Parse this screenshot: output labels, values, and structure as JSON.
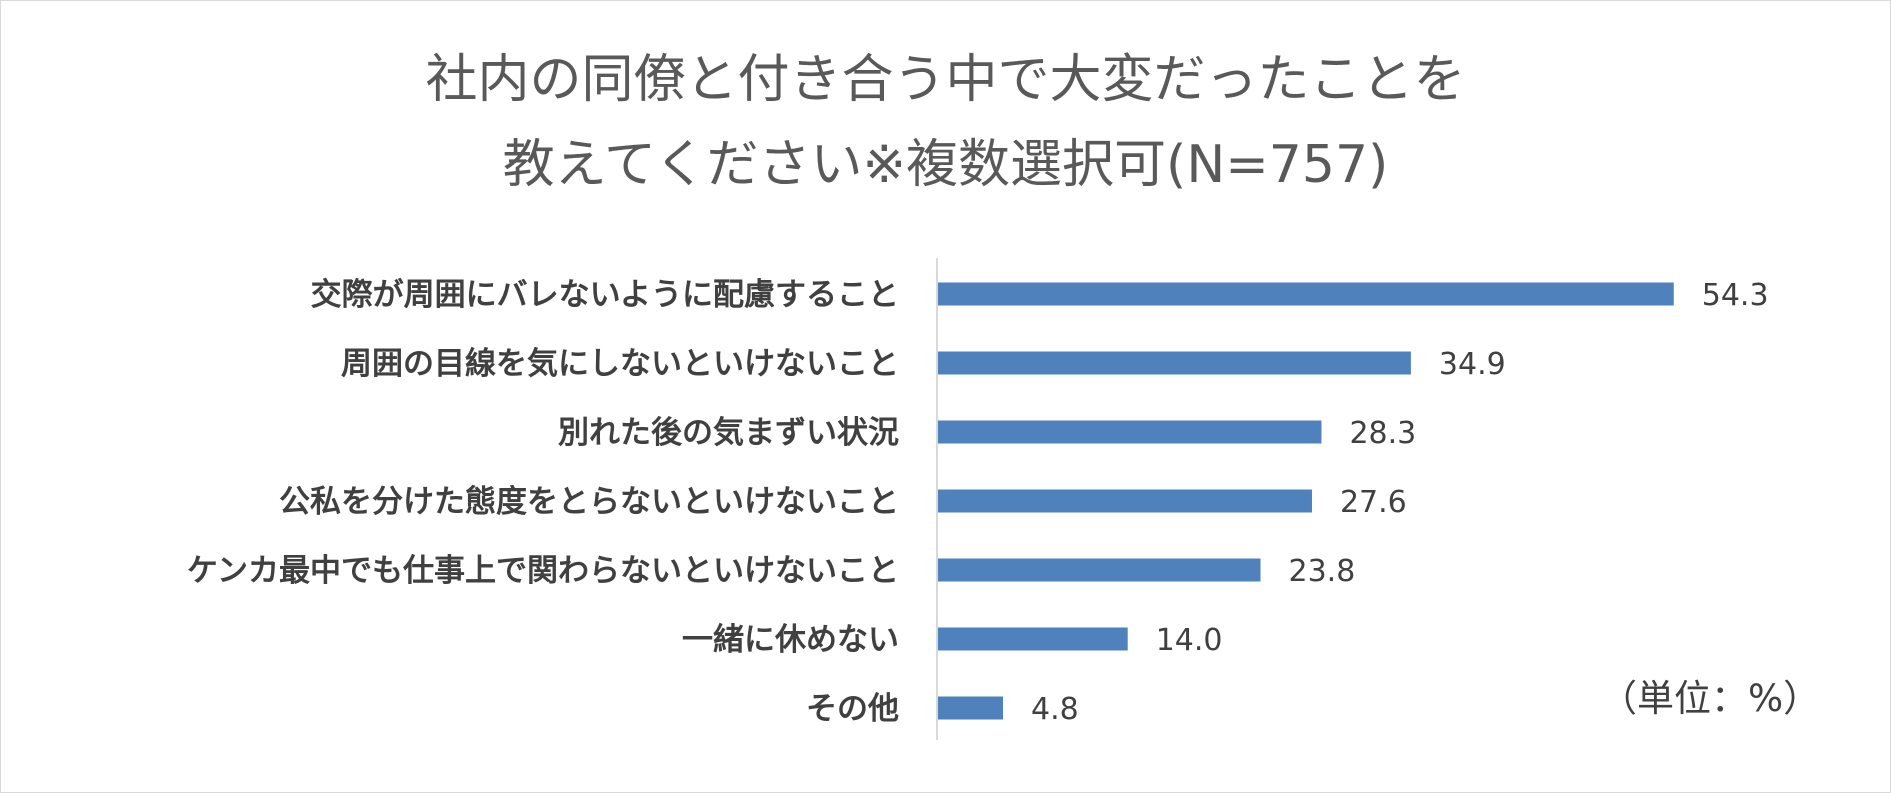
{
  "chart_data": {
    "type": "bar",
    "orientation": "horizontal",
    "title": [
      "社内の同僚と付き合う中で大変だったことを",
      "教えてください※複数選択可(N=757)"
    ],
    "categories": [
      "交際が周囲にバレないように配慮すること",
      "周囲の目線を気にしないといけないこと",
      "別れた後の気まずい状況",
      "公私を分けた態度をとらないといけないこと",
      "ケンカ最中でも仕事上で関わらないといけないこと",
      "一緒に休めない",
      "その他"
    ],
    "values": [
      54.3,
      34.9,
      28.3,
      27.6,
      23.8,
      14.0,
      4.8
    ],
    "value_labels": [
      "54.3",
      "34.9",
      "28.3",
      "27.6",
      "23.8",
      "14.0",
      "4.8"
    ],
    "xlim": [
      0,
      60
    ],
    "unit_note": "（単位：%）",
    "grid": false,
    "legend": "none",
    "colors": {
      "bar": "#4f81bd",
      "axis": "#d9d9d9",
      "text": "#404040",
      "title": "#595959"
    }
  }
}
